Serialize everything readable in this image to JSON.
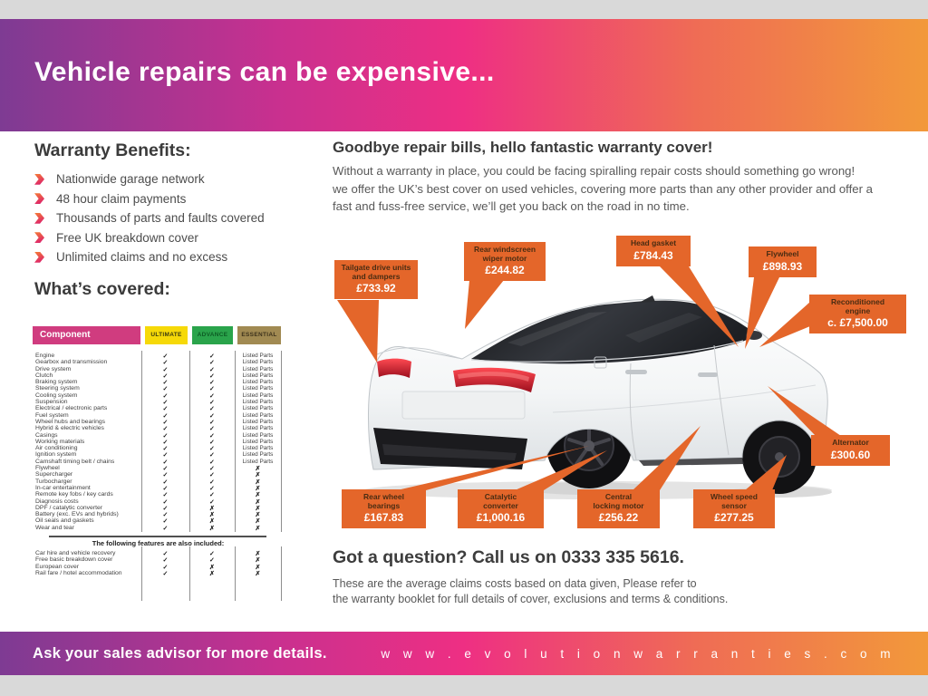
{
  "colors": {
    "accent_orange": "#e4662a",
    "bullet_pink": "#dd2569",
    "gradient_left": "#7e3b93",
    "gradient_mid": "#ee2f83",
    "gradient_right": "#f2993a",
    "component_header_bg": "#d03c7f",
    "ultimate_bg": "#f6d908",
    "advance_bg": "#2aa44b",
    "essential_bg": "#a18a52"
  },
  "top_banner": {
    "title": "Vehicle repairs can be expensive..."
  },
  "benefits": {
    "heading": "Warranty Benefits:",
    "items": [
      "Nationwide garage network",
      "48 hour claim payments",
      "Thousands of parts and faults covered",
      "Free UK breakdown cover",
      "Unlimited claims and no excess"
    ]
  },
  "coverage": {
    "heading": "What’s covered:",
    "table": {
      "columns": [
        "Component",
        "ULTIMATE",
        "ADVANCE",
        "ESSENTIAL"
      ],
      "rows": [
        {
          "name": "Engine",
          "u": "check",
          "a": "check",
          "e": "Listed Parts"
        },
        {
          "name": "Gearbox and transmission",
          "u": "check",
          "a": "check",
          "e": "Listed Parts"
        },
        {
          "name": "Drive system",
          "u": "check",
          "a": "check",
          "e": "Listed Parts"
        },
        {
          "name": "Clutch",
          "u": "check",
          "a": "check",
          "e": "Listed Parts"
        },
        {
          "name": "Braking system",
          "u": "check",
          "a": "check",
          "e": "Listed Parts"
        },
        {
          "name": "Steering system",
          "u": "check",
          "a": "check",
          "e": "Listed Parts"
        },
        {
          "name": "Cooling system",
          "u": "check",
          "a": "check",
          "e": "Listed Parts"
        },
        {
          "name": "Suspension",
          "u": "check",
          "a": "check",
          "e": "Listed Parts"
        },
        {
          "name": "Electrical / electronic parts",
          "u": "check",
          "a": "check",
          "e": "Listed Parts"
        },
        {
          "name": "Fuel system",
          "u": "check",
          "a": "check",
          "e": "Listed Parts"
        },
        {
          "name": "Wheel hubs and bearings",
          "u": "check",
          "a": "check",
          "e": "Listed Parts"
        },
        {
          "name": "Hybrid & electric vehicles",
          "u": "check",
          "a": "check",
          "e": "Listed Parts"
        },
        {
          "name": "Casings",
          "u": "check",
          "a": "check",
          "e": "Listed Parts"
        },
        {
          "name": "Working materials",
          "u": "check",
          "a": "check",
          "e": "Listed Parts"
        },
        {
          "name": "Air conditioning",
          "u": "check",
          "a": "check",
          "e": "Listed Parts"
        },
        {
          "name": "Ignition system",
          "u": "check",
          "a": "check",
          "e": "Listed Parts"
        },
        {
          "name": "Camshaft timing belt / chains",
          "u": "check",
          "a": "check",
          "e": "Listed Parts"
        },
        {
          "name": "Flywheel",
          "u": "check",
          "a": "check",
          "e": "cross"
        },
        {
          "name": "Supercharger",
          "u": "check",
          "a": "check",
          "e": "cross"
        },
        {
          "name": "Turbocharger",
          "u": "check",
          "a": "check",
          "e": "cross"
        },
        {
          "name": "In-car entertainment",
          "u": "check",
          "a": "check",
          "e": "cross"
        },
        {
          "name": "Remote key fobs / key cards",
          "u": "check",
          "a": "check",
          "e": "cross"
        },
        {
          "name": "Diagnosis costs",
          "u": "check",
          "a": "check",
          "e": "cross"
        },
        {
          "name": "DPF / catalytic converter",
          "u": "check",
          "a": "cross",
          "e": "cross"
        },
        {
          "name": "Battery (exc. EVs and hybrids)",
          "u": "check",
          "a": "cross",
          "e": "cross"
        },
        {
          "name": "Oil seals and gaskets",
          "u": "check",
          "a": "cross",
          "e": "cross"
        },
        {
          "name": "Wear and tear",
          "u": "check",
          "a": "cross",
          "e": "cross"
        }
      ],
      "extras_heading": "The following features are also included:",
      "extras": [
        {
          "name": "Car hire and vehicle recovery",
          "u": "check",
          "a": "check",
          "e": "cross"
        },
        {
          "name": "Free basic breakdown cover",
          "u": "check",
          "a": "check",
          "e": "cross"
        },
        {
          "name": "European cover",
          "u": "check",
          "a": "cross",
          "e": "cross"
        },
        {
          "name": "Rail fare / hotel accommodation",
          "u": "check",
          "a": "cross",
          "e": "cross"
        }
      ]
    }
  },
  "promo": {
    "heading": "Goodbye repair bills, hello fantastic warranty cover!",
    "body": "Without a warranty in place, you could be facing spiralling repair costs should something go wrong!\nwe offer the UK’s best cover on used vehicles, covering more parts than any other provider and offer a\nfast and fuss-free service, we’ll get you back on the road in no time."
  },
  "callouts": [
    {
      "label": "Tailgate drive units\nand dampers",
      "price": "£733.92"
    },
    {
      "label": "Rear windscreen\nwiper motor",
      "price": "£244.82"
    },
    {
      "label": "Head gasket",
      "price": "£784.43"
    },
    {
      "label": "Flywheel",
      "price": "£898.93"
    },
    {
      "label": "Reconditioned\nengine",
      "price": "c. £7,500.00"
    },
    {
      "label": "Alternator",
      "price": "£300.60"
    },
    {
      "label": "Rear wheel\nbearings",
      "price": "£167.83"
    },
    {
      "label": "Catalytic\nconverter",
      "price": "£1,000.16"
    },
    {
      "label": "Central\nlocking motor",
      "price": "£256.22"
    },
    {
      "label": "Wheel speed\nsensor",
      "price": "£277.25"
    }
  ],
  "contact": {
    "heading": "Got a question? Call us on 0333 335 5616.",
    "note": "These are the average claims costs based on data given, Please refer to\nthe warranty booklet for full details of cover, exclusions and terms & conditions."
  },
  "bottom_banner": {
    "left": "Ask your sales advisor for more details.",
    "right": "w w w . e v o l u t i o n w a r r a n t i e s . c o m"
  }
}
